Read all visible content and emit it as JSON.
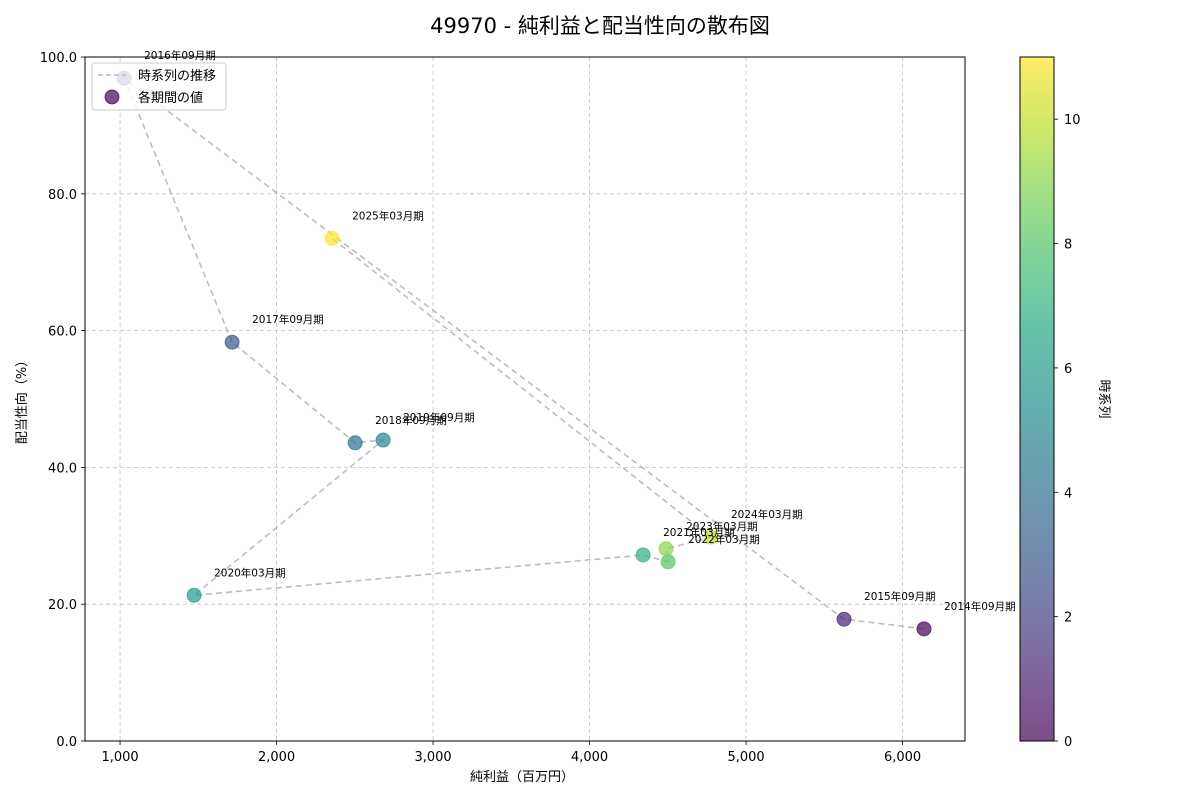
{
  "chart_data": {
    "type": "scatter",
    "title": "49970 - 純利益と配当性向の散布図",
    "xlabel": "純利益（百万円）",
    "ylabel": "配当性向（%）",
    "xlim": [
      776,
      6399
    ],
    "ylim": [
      0,
      100
    ],
    "x_ticks": [
      1000,
      2000,
      3000,
      4000,
      5000,
      6000
    ],
    "x_tick_labels": [
      "1,000",
      "2,000",
      "3,000",
      "4,000",
      "5,000",
      "6,000"
    ],
    "y_ticks": [
      0,
      20,
      40,
      60,
      80,
      100
    ],
    "y_tick_labels": [
      "0.0",
      "20.0",
      "40.0",
      "60.0",
      "80.0",
      "100.0"
    ],
    "grid": true,
    "legend": {
      "position": "upper left",
      "entries": [
        {
          "label": "時系列の推移",
          "marker": "dashed-line",
          "color": "#bbbbbb"
        },
        {
          "label": "各期間の値",
          "marker": "circle",
          "color": "#440154"
        }
      ]
    },
    "colorbar": {
      "label": "時系列",
      "range": [
        0,
        11
      ],
      "ticks": [
        0,
        2,
        4,
        6,
        8,
        10
      ],
      "colormap": "viridis"
    },
    "points": [
      {
        "period": "2014年09月期",
        "order": 0,
        "net_income": 6137,
        "payout_ratio": 16.4,
        "color": "#440154"
      },
      {
        "period": "2015年09月期",
        "order": 1,
        "net_income": 5626,
        "payout_ratio": 17.8,
        "color": "#482173"
      },
      {
        "period": "2016年09月期",
        "order": 2,
        "net_income": 1026,
        "payout_ratio": 96.9,
        "color": "#433e85"
      },
      {
        "period": "2017年09月期",
        "order": 3,
        "net_income": 1716,
        "payout_ratio": 58.3,
        "color": "#38598c"
      },
      {
        "period": "2018年09月期",
        "order": 4,
        "net_income": 2502,
        "payout_ratio": 43.6,
        "color": "#2d708e"
      },
      {
        "period": "2019年09月期",
        "order": 5,
        "net_income": 2681,
        "payout_ratio": 44.0,
        "color": "#25858e"
      },
      {
        "period": "2020年03月期",
        "order": 6,
        "net_income": 1473,
        "payout_ratio": 21.3,
        "color": "#1e9b8a"
      },
      {
        "period": "2021年03月期",
        "order": 7,
        "net_income": 4342,
        "payout_ratio": 27.2,
        "color": "#2ab07f"
      },
      {
        "period": "2022年03月期",
        "order": 8,
        "net_income": 4502,
        "payout_ratio": 26.2,
        "color": "#52c569"
      },
      {
        "period": "2023年03月期",
        "order": 9,
        "net_income": 4489,
        "payout_ratio": 28.1,
        "color": "#86d549"
      },
      {
        "period": "2024年03月期",
        "order": 10,
        "net_income": 4776,
        "payout_ratio": 29.8,
        "color": "#c2df23"
      },
      {
        "period": "2025年03月期",
        "order": 11,
        "net_income": 2355,
        "payout_ratio": 73.5,
        "color": "#fde725"
      }
    ]
  }
}
